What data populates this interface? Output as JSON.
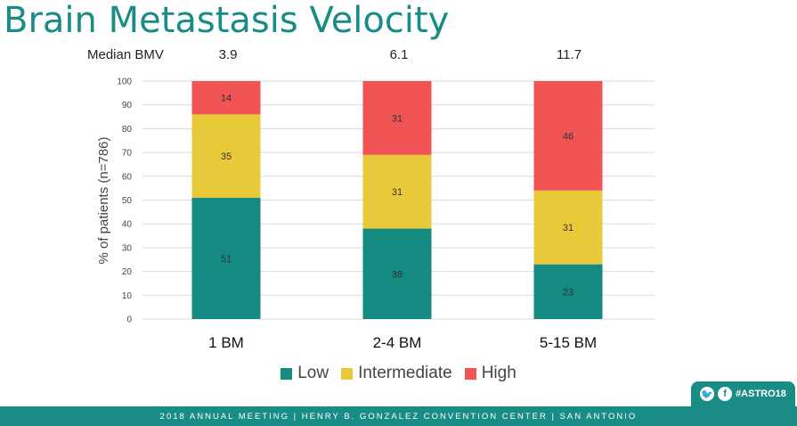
{
  "header": {
    "title": "Brain Metastasis Velocity"
  },
  "median": {
    "label": "Median BMV",
    "values": [
      "3.9",
      "6.1",
      "11.7"
    ]
  },
  "chart_data": {
    "type": "bar",
    "stacked": true,
    "categories": [
      "1 BM",
      "2-4 BM",
      "5-15 BM"
    ],
    "series": [
      {
        "name": "Low",
        "values": [
          51,
          38,
          23
        ],
        "color": "#148a80"
      },
      {
        "name": "Intermediate",
        "values": [
          35,
          31,
          31
        ],
        "color": "#e8c93a"
      },
      {
        "name": "High",
        "values": [
          14,
          31,
          46
        ],
        "color": "#f05454"
      }
    ],
    "ylabel": "% of patients (n=786)",
    "ylim": [
      0,
      100
    ],
    "yticks": [
      "0",
      "10",
      "20",
      "30",
      "40",
      "50",
      "60",
      "70",
      "80",
      "90",
      "100"
    ],
    "grid": true,
    "legend": "bottom"
  },
  "social": {
    "hashtag": "#ASTRO18",
    "twitter_glyph": "🐦",
    "facebook_glyph": "f"
  },
  "footer": {
    "text": "2018 ANNUAL MEETING  |  HENRY B. GONZALEZ CONVENTION CENTER  |  SAN ANTONIO"
  }
}
